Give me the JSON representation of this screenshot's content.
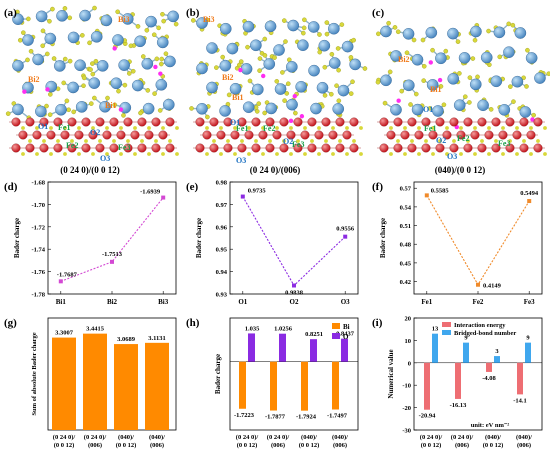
{
  "panels": {
    "a": {
      "letter": "(a)",
      "caption": "(0 24 0)/(0 0 12)",
      "labels": {
        "Bi3": "Bi3",
        "Bi2": "Bi2",
        "Bi1": "Bi1",
        "O1": "O1",
        "O2": "O2",
        "O3": "O3",
        "Fe1": "Fe1",
        "Fe2": "Fe2",
        "Fe3": "Fe3"
      }
    },
    "b": {
      "letter": "(b)",
      "caption": "(0 24 0)/(006)",
      "labels": {
        "Bi3": "Bi3",
        "Bi2": "Bi2",
        "Bi1": "Bi1",
        "O1": "O1",
        "O2": "O2",
        "O3": "O3",
        "Fe1": "Fe1",
        "Fe2": "Fe2",
        "Fe3": "Fe3"
      }
    },
    "c": {
      "letter": "(c)",
      "caption": "(040)/(0 0 12)",
      "labels": {
        "Bi2": "Bi2",
        "Bi1": "Bi1",
        "O1": "O1",
        "O2": "O2",
        "O3": "O3",
        "Fe1": "Fe1",
        "Fe2": "Fe2",
        "Fe3": "Fe3"
      }
    },
    "d": {
      "letter": "(d)"
    },
    "e": {
      "letter": "(e)"
    },
    "f": {
      "letter": "(f)"
    },
    "g": {
      "letter": "(g)"
    },
    "h": {
      "letter": "(h)"
    },
    "i": {
      "letter": "(i)"
    },
    "i_unit": "unit: eV nm⁻²"
  },
  "colors": {
    "bi": "#4a87c0",
    "fe": "#c2141c",
    "o_small": "#d8d83a",
    "o_site": "#ff2df0",
    "orange": "#ff8a00",
    "purple": "#8a2be2",
    "salmon": "#ee6e73",
    "sky": "#3fa7ee",
    "line_d": "#d348d3",
    "line_e": "#8c2be2",
    "line_f": "#f08a2a"
  },
  "chart_data": [
    {
      "panel": "d",
      "type": "line",
      "categories": [
        "Bi1",
        "Bi2",
        "Bi3"
      ],
      "values": [
        -1.7687,
        -1.7513,
        -1.6939
      ],
      "value_labels": [
        "-1.7687",
        "-1.7513",
        "-1.6939"
      ],
      "ylabel": "Bader charge",
      "ylim": [
        -1.78,
        -1.68
      ],
      "yticks": [
        "-1.68",
        "-1.70",
        "-1.72",
        "-1.74",
        "-1.76",
        "-1.78"
      ]
    },
    {
      "panel": "e",
      "type": "line",
      "categories": [
        "O1",
        "O2",
        "O3"
      ],
      "values": [
        0.9735,
        0.9338,
        0.9556
      ],
      "value_labels": [
        "0.9735",
        "0.9338",
        "0.9556"
      ],
      "ylabel": "Bader charge",
      "ylim": [
        0.93,
        0.98
      ],
      "yticks": [
        "0.98",
        "0.97",
        "0.96",
        "0.95",
        "0.94",
        "0.93"
      ]
    },
    {
      "panel": "f",
      "type": "line",
      "categories": [
        "Fe1",
        "Fe2",
        "Fe3"
      ],
      "values": [
        0.5585,
        0.4149,
        0.5494
      ],
      "value_labels": [
        "0.5585",
        "0.4149",
        "0.5494"
      ],
      "ylabel": "Bader charge",
      "ylim": [
        0.4,
        0.58
      ],
      "yticks": [
        "0.57",
        "0.54",
        "0.51",
        "0.48",
        "0.45",
        "0.42"
      ]
    },
    {
      "panel": "g",
      "type": "bar",
      "categories": [
        [
          "(0 24 0)/",
          "(0 0 12)"
        ],
        [
          "(0 24 0)/",
          "(006)"
        ],
        [
          "(040)/",
          "(0 0 12)"
        ],
        [
          "(040)/",
          "(006)"
        ]
      ],
      "values": [
        3.3007,
        3.4415,
        3.0689,
        3.1131
      ],
      "value_labels": [
        "3.3007",
        "3.4415",
        "3.0689",
        "3.1131"
      ],
      "ylabel": "Sum of absolute Bader charge",
      "ylim": [
        0,
        4
      ]
    },
    {
      "panel": "h",
      "type": "bar",
      "categories": [
        [
          "(0 24 0)/",
          "(0 0 12)"
        ],
        [
          "(0 24 0)/",
          "(006)"
        ],
        [
          "(040)/",
          "(0 0 12)"
        ],
        [
          "(040)/",
          "(006)"
        ]
      ],
      "series": [
        {
          "name": "Bi",
          "values": [
            -1.7223,
            -1.7877,
            -1.7924,
            -1.7497
          ],
          "value_labels": [
            "-1.7223",
            "-1.7877",
            "-1.7924",
            "-1.7497"
          ]
        },
        {
          "name": "O",
          "values": [
            1.035,
            1.0256,
            0.8251,
            0.8437
          ],
          "value_labels": [
            "1.035",
            "1.0256",
            "0.8251",
            "0.8437"
          ]
        }
      ],
      "ylabel": "Bader charge",
      "ylim": [
        -2.5,
        1.6
      ],
      "legend": "top-right"
    },
    {
      "panel": "i",
      "type": "bar",
      "categories": [
        [
          "(0 24 0)/",
          "(0 0 12)"
        ],
        [
          "(0 24 0)/",
          "(006)"
        ],
        [
          "(040)/",
          "(0 0 12)"
        ],
        [
          "(040)/",
          "(006)"
        ]
      ],
      "series": [
        {
          "name": "Interaction energy",
          "values": [
            -20.94,
            -16.13,
            -4.08,
            -14.1
          ],
          "value_labels": [
            "-20.94",
            "-16.13",
            "-4.08",
            "-14.1"
          ]
        },
        {
          "name": "Bridged-bond number",
          "values": [
            13,
            9,
            3,
            9
          ],
          "value_labels": [
            "13",
            "9",
            "3",
            "9"
          ]
        }
      ],
      "ylabel": "Numerical value",
      "ylim": [
        -30,
        20
      ],
      "yticks": [
        "20",
        "10",
        "0",
        "-10",
        "-20",
        "-30"
      ],
      "legend": "top-right"
    }
  ]
}
